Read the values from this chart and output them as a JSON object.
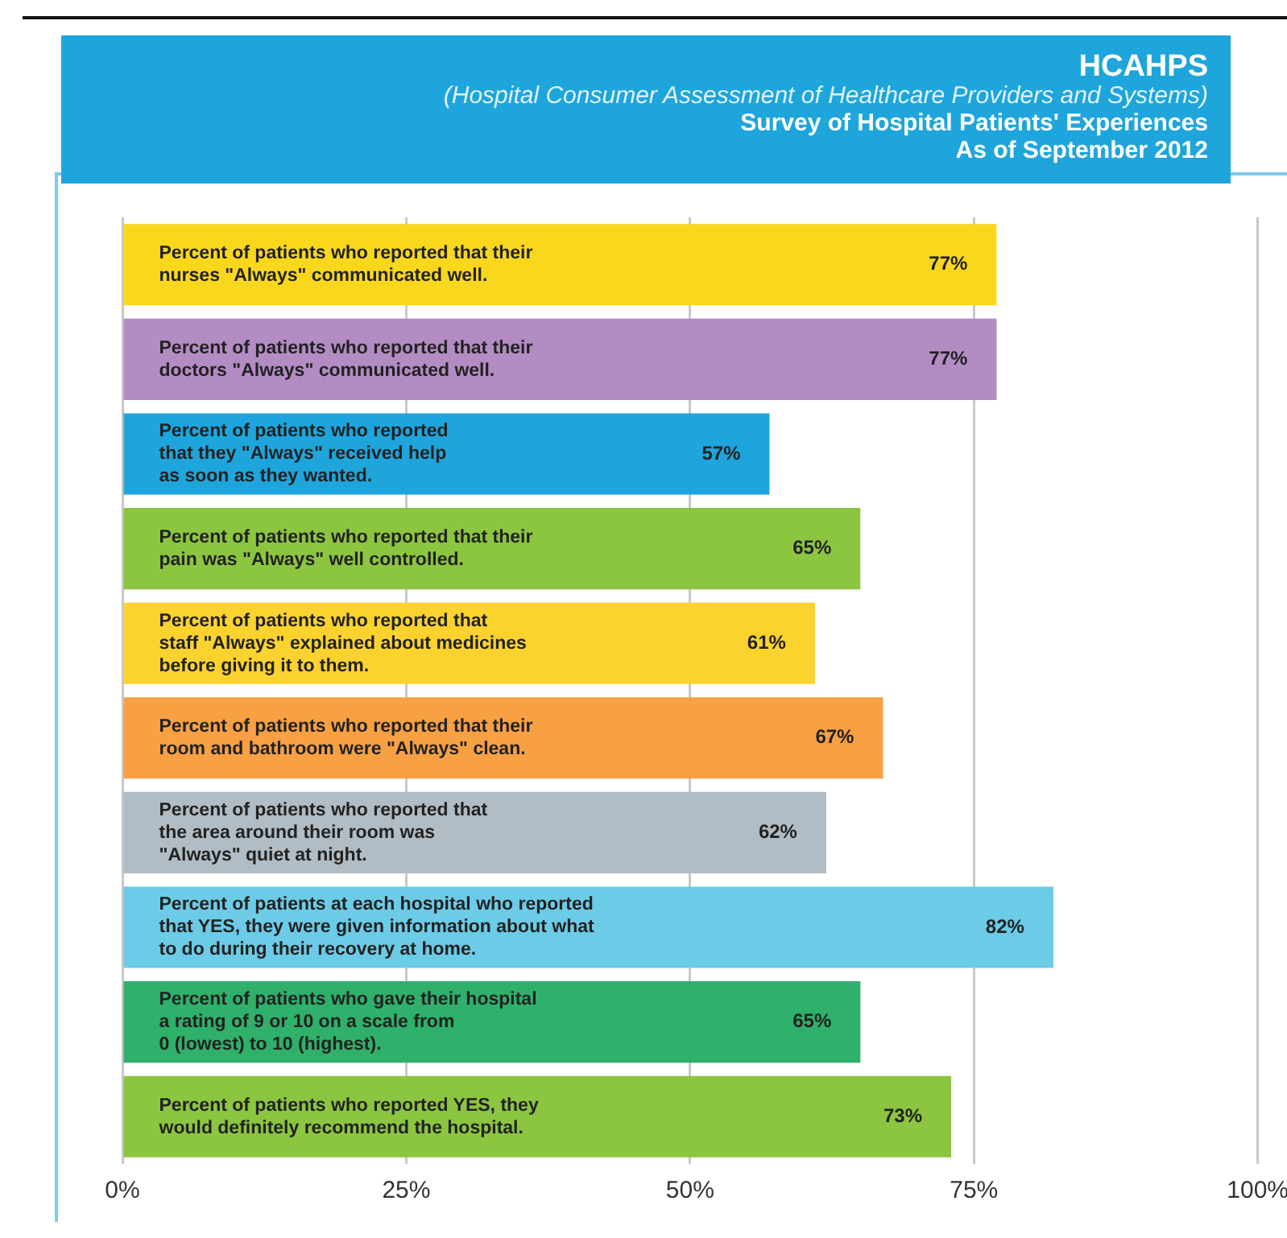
{
  "chart_data": {
    "type": "bar",
    "orientation": "horizontal",
    "title": "HCAHPS",
    "subtitle": "(Hospital Consumer Assessment of Healthcare Providers and Systems)",
    "annotations": [
      "Survey of Hospital Patients' Experiences",
      "As of September 2012"
    ],
    "categories": [
      "Percent of patients who reported that their\nnurses \"Always\" communicated well.",
      "Percent of patients who reported that their\ndoctors \"Always\" communicated well.",
      "Percent of patients who reported\nthat they \"Always\" received help\nas soon as they wanted.",
      "Percent of patients who reported that their\npain was \"Always\" well controlled.",
      "Percent of patients who reported that\nstaff \"Always\" explained about medicines\nbefore giving it to them.",
      "Percent of patients who reported that their\nroom and bathroom were \"Always\" clean.",
      "Percent of patients who reported that\nthe area around their room was\n\"Always\" quiet at night.",
      "Percent of patients at each hospital who reported\nthat YES, they were given information about what\nto do during their recovery at home.",
      "Percent of patients who gave their hospital\na rating of 9 or 10 on a scale from\n0 (lowest) to 10 (highest).",
      "Percent of patients who reported YES, they\nwould definitely recommend the hospital."
    ],
    "values": [
      77,
      77,
      57,
      65,
      61,
      67,
      62,
      82,
      65,
      73
    ],
    "value_labels": [
      "77%",
      "77%",
      "57%",
      "65%",
      "61%",
      "67%",
      "62%",
      "82%",
      "65%",
      "73%"
    ],
    "colors": [
      "#f9d71c",
      "#b48cc4",
      "#1ea5dc",
      "#8cc540",
      "#fcd22e",
      "#f7a044",
      "#b2bcc4",
      "#6ccbe6",
      "#2fb06b",
      "#8cc540"
    ],
    "xlim": [
      0,
      100
    ],
    "xticks": [
      {
        "value": 0,
        "label": "0%"
      },
      {
        "value": 25,
        "label": "25%"
      },
      {
        "value": 50,
        "label": "50%"
      },
      {
        "value": 75,
        "label": "75%"
      },
      {
        "value": 100,
        "label": "100%"
      }
    ],
    "grid": "x",
    "legend": false
  }
}
